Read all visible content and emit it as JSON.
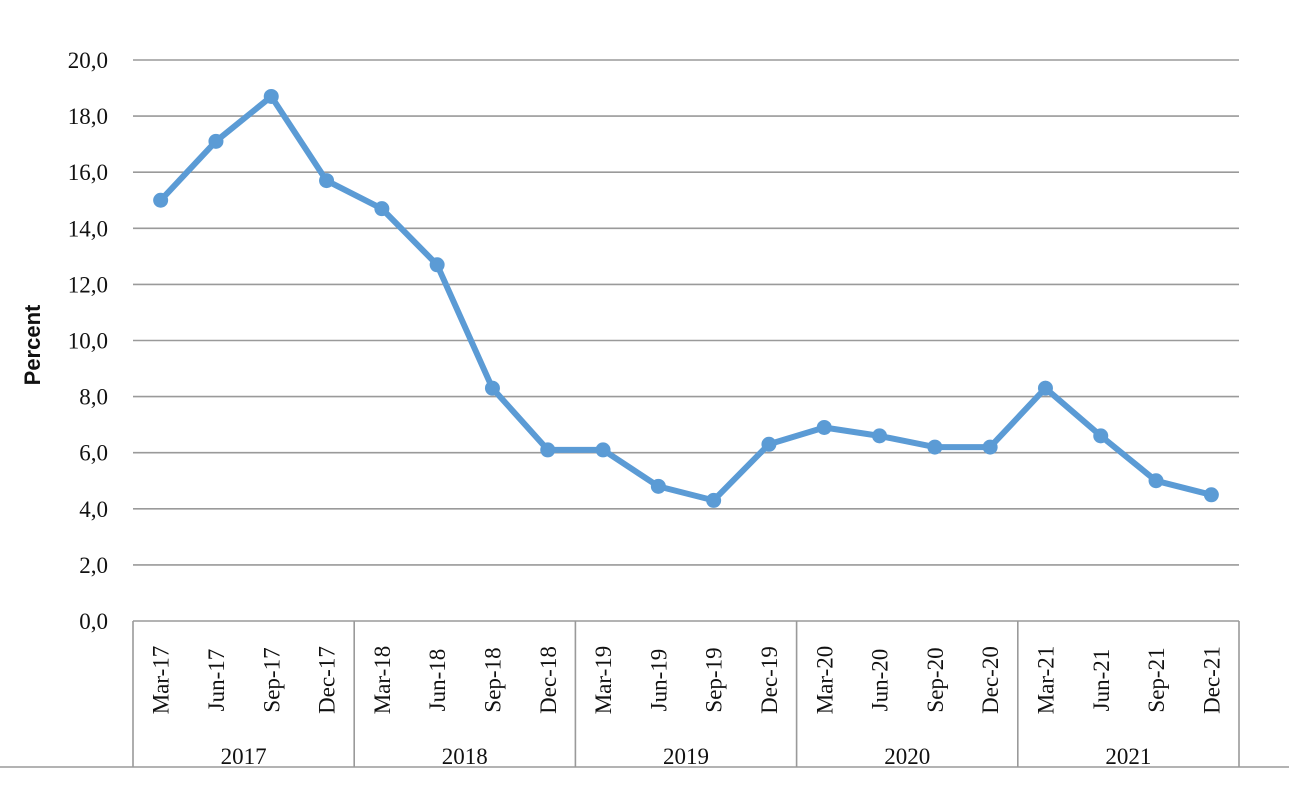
{
  "chart_data": {
    "type": "line",
    "ylabel": "Percent",
    "ylim": [
      0,
      20
    ],
    "ytick_labels": [
      "0,0",
      "2,0",
      "4,0",
      "6,0",
      "8,0",
      "10,0",
      "12,0",
      "14,0",
      "16,0",
      "18,0",
      "20,0"
    ],
    "categories": [
      "Mar-17",
      "Jun-17",
      "Sep-17",
      "Dec-17",
      "Mar-18",
      "Jun-18",
      "Sep-18",
      "Dec-18",
      "Mar-19",
      "Jun-19",
      "Sep-19",
      "Dec-19",
      "Mar-20",
      "Jun-20",
      "Sep-20",
      "Dec-20",
      "Mar-21",
      "Jun-21",
      "Sep-21",
      "Dec-21"
    ],
    "groups": [
      {
        "label": "2017",
        "count": 4
      },
      {
        "label": "2018",
        "count": 4
      },
      {
        "label": "2019",
        "count": 4
      },
      {
        "label": "2020",
        "count": 4
      },
      {
        "label": "2021",
        "count": 4
      }
    ],
    "series": [
      {
        "values": [
          15.0,
          17.1,
          18.7,
          15.7,
          14.7,
          12.7,
          8.3,
          6.1,
          6.1,
          4.8,
          4.3,
          6.3,
          6.9,
          6.6,
          6.2,
          6.2,
          8.3,
          6.6,
          5.0,
          4.5
        ],
        "color": "#5b9bd5"
      }
    ],
    "grid": true,
    "legend": "none"
  }
}
